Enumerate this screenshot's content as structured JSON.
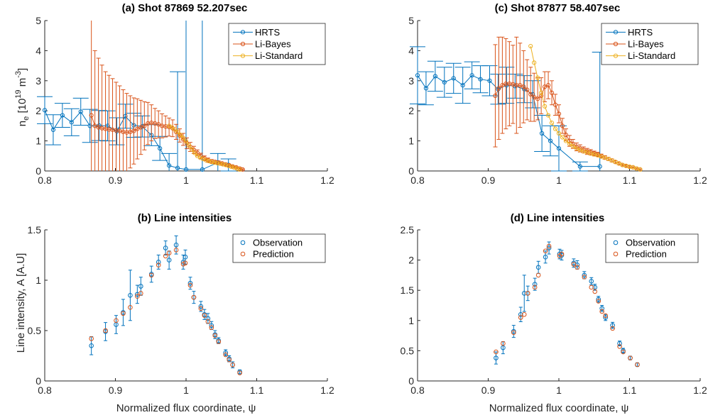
{
  "colors": {
    "HRTS": "#0072bd",
    "Li-Bayes": "#d95319",
    "Li-Standard": "#edb120",
    "Observation": "#0072bd",
    "Prediction": "#d95319"
  },
  "chart_data": [
    {
      "id": "a",
      "type": "line",
      "title": "(a) Shot 87869 52.207sec",
      "xlabel": "",
      "ylabel": "n_e [10^19 m^-3]",
      "xlim": [
        0.8,
        1.2
      ],
      "ylim": [
        0,
        5
      ],
      "xticks": [
        0.8,
        0.9,
        1.0,
        1.1,
        1.2
      ],
      "xtick_labels": [
        "0.8",
        "0.9",
        "1",
        "1.1",
        "1.2"
      ],
      "yticks": [
        0,
        1,
        2,
        3,
        4,
        5
      ],
      "ytick_labels": [
        "0",
        "1",
        "2",
        "3",
        "4",
        "5"
      ],
      "legend": {
        "location": "top-right",
        "entries": [
          "HRTS",
          "Li-Bayes",
          "Li-Standard"
        ]
      },
      "series": [
        {
          "name": "HRTS",
          "x": [
            0.8,
            0.812,
            0.825,
            0.838,
            0.851,
            0.864,
            0.877,
            0.889,
            0.902,
            0.914,
            0.926,
            0.938,
            0.951,
            0.963,
            0.976,
            0.988,
            1.0,
            1.023,
            1.045,
            1.06
          ],
          "y": [
            2.02,
            1.37,
            1.85,
            1.62,
            1.97,
            1.5,
            1.51,
            1.5,
            1.32,
            1.82,
            1.52,
            1.48,
            1.19,
            0.75,
            0.18,
            0.1,
            0.05,
            0.05,
            0.28,
            0.2
          ],
          "err": [
            0.45,
            0.5,
            0.4,
            0.45,
            0.45,
            0.55,
            0.5,
            0.5,
            0.45,
            0.4,
            0.4,
            0.35,
            0.35,
            0.4,
            0.4,
            3.2,
            5.0,
            5.0,
            0.3,
            0.2
          ]
        },
        {
          "name": "Li-Bayes",
          "x": [
            0.866,
            0.871,
            0.876,
            0.881,
            0.886,
            0.891,
            0.896,
            0.901,
            0.906,
            0.911,
            0.916,
            0.921,
            0.926,
            0.931,
            0.936,
            0.941,
            0.946,
            0.951,
            0.956,
            0.961,
            0.966,
            0.971,
            0.976,
            0.981,
            0.986,
            0.991,
            0.996,
            1.001,
            1.006,
            1.011,
            1.016,
            1.021,
            1.026,
            1.031,
            1.036,
            1.041,
            1.046,
            1.051,
            1.056,
            1.061,
            1.066,
            1.071,
            1.076,
            1.08
          ],
          "y": [
            1.85,
            1.5,
            1.45,
            1.42,
            1.4,
            1.38,
            1.37,
            1.35,
            1.33,
            1.3,
            1.28,
            1.3,
            1.33,
            1.4,
            1.45,
            1.5,
            1.58,
            1.6,
            1.58,
            1.55,
            1.5,
            1.48,
            1.46,
            1.42,
            1.3,
            1.18,
            1.05,
            0.92,
            0.8,
            0.7,
            0.6,
            0.5,
            0.42,
            0.36,
            0.32,
            0.3,
            0.28,
            0.25,
            0.22,
            0.19,
            0.15,
            0.12,
            0.08,
            0.05
          ],
          "err": [
            3.5,
            2.5,
            2.3,
            2.1,
            1.9,
            1.8,
            1.7,
            1.6,
            1.5,
            1.4,
            1.3,
            1.2,
            1.1,
            1.0,
            0.9,
            0.8,
            0.7,
            0.6,
            0.5,
            0.45,
            0.4,
            0.35,
            0.3,
            0.28,
            0.25,
            0.22,
            0.2,
            0.18,
            0.15,
            0.12,
            0.1,
            0.09,
            0.08,
            0.07,
            0.06,
            0.05,
            0.05,
            0.04,
            0.04,
            0.03,
            0.03,
            0.03,
            0.02,
            0.02
          ]
        },
        {
          "name": "Li-Standard",
          "x": [
            0.976,
            0.98,
            0.984,
            0.988,
            0.992,
            0.996,
            1.0,
            1.004,
            1.008,
            1.012,
            1.016,
            1.02,
            1.024,
            1.028,
            1.032,
            1.036,
            1.04,
            1.044,
            1.048,
            1.052,
            1.056,
            1.06,
            1.064,
            1.068,
            1.072,
            1.076
          ],
          "y": [
            1.5,
            1.45,
            1.38,
            1.3,
            1.2,
            1.1,
            0.98,
            0.85,
            0.72,
            0.6,
            0.5,
            0.44,
            0.4,
            0.36,
            0.33,
            0.3,
            0.28,
            0.26,
            0.24,
            0.22,
            0.2,
            0.17,
            0.14,
            0.11,
            0.08,
            0.05
          ],
          "err": []
        }
      ]
    },
    {
      "id": "c",
      "type": "line",
      "title": "(c) Shot 87877 58.407sec",
      "xlabel": "",
      "ylabel": "",
      "xlim": [
        0.8,
        1.2
      ],
      "ylim": [
        0,
        5
      ],
      "xticks": [
        0.8,
        0.9,
        1.0,
        1.1,
        1.2
      ],
      "xtick_labels": [
        "0.8",
        "0.9",
        "1",
        "1.1",
        "1.2"
      ],
      "yticks": [
        0,
        1,
        2,
        3,
        4,
        5
      ],
      "ytick_labels": [
        "0",
        "1",
        "2",
        "3",
        "4",
        "5"
      ],
      "legend": {
        "location": "top-right",
        "entries": [
          "HRTS",
          "Li-Bayes",
          "Li-Standard"
        ]
      },
      "series": [
        {
          "name": "HRTS",
          "x": [
            0.8,
            0.812,
            0.825,
            0.838,
            0.851,
            0.864,
            0.877,
            0.889,
            0.902,
            0.914,
            0.926,
            0.938,
            0.951,
            0.963,
            0.976,
            0.988,
            1.0,
            1.03,
            1.058
          ],
          "y": [
            3.18,
            2.75,
            3.15,
            2.95,
            3.08,
            2.85,
            3.18,
            3.05,
            3.0,
            2.72,
            2.85,
            2.82,
            2.72,
            2.55,
            1.25,
            1.0,
            0.75,
            0.15,
            0.15
          ],
          "err": [
            0.95,
            0.55,
            0.5,
            0.5,
            0.5,
            0.6,
            0.45,
            0.45,
            0.5,
            0.5,
            0.6,
            0.4,
            0.45,
            0.45,
            0.6,
            0.5,
            0.75,
            0.15,
            3.8
          ]
        },
        {
          "name": "Li-Bayes",
          "x": [
            0.91,
            0.915,
            0.92,
            0.925,
            0.93,
            0.935,
            0.94,
            0.945,
            0.95,
            0.955,
            0.96,
            0.965,
            0.97,
            0.975,
            0.98,
            0.985,
            0.99,
            0.995,
            1.0,
            1.005,
            1.01,
            1.015,
            1.02,
            1.025,
            1.03,
            1.035,
            1.04,
            1.045,
            1.05,
            1.055,
            1.06,
            1.065,
            1.07,
            1.075,
            1.08,
            1.085,
            1.09,
            1.095,
            1.1,
            1.105,
            1.11,
            1.115
          ],
          "y": [
            2.5,
            2.75,
            2.85,
            2.9,
            2.9,
            2.88,
            2.85,
            2.85,
            2.8,
            2.7,
            2.55,
            2.45,
            2.4,
            2.5,
            2.8,
            2.85,
            2.6,
            2.2,
            1.9,
            1.5,
            1.2,
            1.0,
            0.9,
            0.8,
            0.75,
            0.7,
            0.65,
            0.62,
            0.58,
            0.55,
            0.5,
            0.45,
            0.4,
            0.35,
            0.3,
            0.25,
            0.2,
            0.17,
            0.14,
            0.12,
            0.08,
            0.05
          ],
          "err": [
            1.7,
            1.7,
            1.6,
            1.5,
            1.4,
            1.3,
            1.6,
            1.4,
            1.2,
            1.0,
            0.9,
            0.8,
            0.7,
            0.6,
            0.5,
            0.45,
            0.4,
            0.35,
            0.3,
            0.25,
            0.2,
            0.18,
            0.15,
            0.13,
            0.12,
            0.1,
            0.1,
            0.09,
            0.08,
            0.07,
            0.06,
            0.06,
            0.05,
            0.05,
            0.04,
            0.04,
            0.03,
            0.03,
            0.03,
            0.02,
            0.02,
            0.02
          ]
        },
        {
          "name": "Li-Standard",
          "x": [
            0.96,
            0.965,
            0.97,
            0.975,
            0.98,
            0.985,
            0.99,
            0.995,
            1.0,
            1.005,
            1.01,
            1.015,
            1.02,
            1.025,
            1.03,
            1.035,
            1.04,
            1.045,
            1.05,
            1.055,
            1.06,
            1.065,
            1.07,
            1.075,
            1.08,
            1.085,
            1.09,
            1.095,
            1.1,
            1.105,
            1.11,
            1.115
          ],
          "y": [
            4.15,
            3.6,
            3.1,
            2.6,
            2.15,
            1.85,
            1.6,
            1.4,
            1.25,
            1.12,
            1.0,
            0.9,
            0.82,
            0.75,
            0.7,
            0.65,
            0.62,
            0.58,
            0.55,
            0.52,
            0.48,
            0.44,
            0.4,
            0.35,
            0.3,
            0.25,
            0.2,
            0.17,
            0.14,
            0.12,
            0.08,
            0.05
          ],
          "err": []
        }
      ]
    },
    {
      "id": "b",
      "type": "scatter",
      "title": "(b) Line intensities",
      "xlabel": "Normalized flux coordinate, ψ",
      "ylabel": "Line intensity, A [A.U]",
      "xlim": [
        0.8,
        1.2
      ],
      "ylim": [
        0,
        1.5
      ],
      "xticks": [
        0.8,
        0.9,
        1.0,
        1.1,
        1.2
      ],
      "xtick_labels": [
        "0.8",
        "0.9",
        "1",
        "1.1",
        "1.2"
      ],
      "yticks": [
        0,
        0.5,
        1,
        1.5
      ],
      "ytick_labels": [
        "0",
        "0.5",
        "1",
        "1.5"
      ],
      "legend": {
        "location": "top-right",
        "entries": [
          "Observation",
          "Prediction"
        ]
      },
      "series": [
        {
          "name": "Observation",
          "x": [
            0.866,
            0.886,
            0.901,
            0.911,
            0.921,
            0.931,
            0.936,
            0.951,
            0.961,
            0.971,
            0.976,
            0.986,
            0.996,
            0.999,
            1.006,
            1.011,
            1.021,
            1.026,
            1.031,
            1.036,
            1.041,
            1.046,
            1.056,
            1.061,
            1.066,
            1.076
          ],
          "y": [
            0.35,
            0.49,
            0.56,
            0.68,
            0.85,
            0.86,
            0.94,
            1.06,
            1.18,
            1.32,
            1.2,
            1.35,
            1.18,
            1.23,
            0.97,
            0.83,
            0.74,
            0.66,
            0.62,
            0.55,
            0.46,
            0.4,
            0.28,
            0.22,
            0.16,
            0.09
          ]
        },
        {
          "name": "Prediction",
          "x": [
            0.866,
            0.886,
            0.901,
            0.911,
            0.921,
            0.931,
            0.936,
            0.951,
            0.961,
            0.971,
            0.976,
            0.986,
            0.996,
            0.999,
            1.006,
            1.011,
            1.021,
            1.026,
            1.031,
            1.036,
            1.041,
            1.046,
            1.056,
            1.061,
            1.066,
            1.076
          ],
          "y": [
            0.42,
            0.5,
            0.6,
            0.67,
            0.73,
            0.84,
            0.87,
            1.05,
            1.15,
            1.24,
            1.27,
            1.3,
            1.16,
            1.17,
            0.95,
            0.83,
            0.72,
            0.65,
            0.59,
            0.53,
            0.45,
            0.39,
            0.26,
            0.21,
            0.16,
            0.08
          ]
        }
      ],
      "errorbars": [
        0.09,
        0.09,
        0.09,
        0.13,
        0.25,
        0.09,
        0.09,
        0.08,
        0.07,
        0.07,
        0.09,
        0.09,
        0.07,
        0.07,
        0.06,
        0.06,
        0.05,
        0.05,
        0.05,
        0.04,
        0.04,
        0.03,
        0.03,
        0.03,
        0.03,
        0.02
      ]
    },
    {
      "id": "d",
      "type": "scatter",
      "title": "(d) Line intensities",
      "xlabel": "Normalized flux coordinate, ψ",
      "ylabel": "",
      "xlim": [
        0.8,
        1.2
      ],
      "ylim": [
        0,
        2.5
      ],
      "xticks": [
        0.8,
        0.9,
        1.0,
        1.1,
        1.2
      ],
      "xtick_labels": [
        "0.8",
        "0.9",
        "1",
        "1.1",
        "1.2"
      ],
      "yticks": [
        0,
        0.5,
        1,
        1.5,
        2,
        2.5
      ],
      "ytick_labels": [
        "0",
        "0.5",
        "1",
        "1.5",
        "2",
        "2.5"
      ],
      "legend": {
        "location": "top-right",
        "entries": [
          "Observation",
          "Prediction"
        ]
      },
      "series": [
        {
          "name": "Observation",
          "x": [
            0.911,
            0.921,
            0.936,
            0.946,
            0.951,
            0.956,
            0.966,
            0.971,
            0.981,
            0.986,
            1.001,
            1.004,
            1.021,
            1.026,
            1.036,
            1.046,
            1.051,
            1.056,
            1.061,
            1.066,
            1.076,
            1.086,
            1.091,
            1.101,
            1.111
          ],
          "y": [
            0.38,
            0.55,
            0.82,
            1.1,
            1.45,
            1.45,
            1.6,
            1.88,
            2.05,
            2.2,
            2.1,
            2.08,
            1.95,
            1.92,
            1.75,
            1.65,
            1.55,
            1.35,
            1.2,
            1.05,
            0.92,
            0.62,
            0.5,
            0.38,
            0.27
          ]
        },
        {
          "name": "Prediction",
          "x": [
            0.911,
            0.921,
            0.936,
            0.946,
            0.951,
            0.956,
            0.966,
            0.971,
            0.981,
            0.986,
            1.001,
            1.004,
            1.021,
            1.026,
            1.036,
            1.046,
            1.051,
            1.056,
            1.061,
            1.066,
            1.076,
            1.086,
            1.091,
            1.101,
            1.111
          ],
          "y": [
            0.48,
            0.62,
            0.8,
            1.05,
            1.1,
            1.45,
            1.55,
            1.75,
            2.15,
            2.23,
            2.07,
            2.1,
            1.93,
            1.88,
            1.72,
            1.55,
            1.48,
            1.32,
            1.15,
            1.08,
            0.87,
            0.57,
            0.48,
            0.38,
            0.27
          ]
        }
      ],
      "errorbars": [
        0.1,
        0.1,
        0.1,
        0.12,
        0.3,
        0.12,
        0.1,
        0.1,
        0.1,
        0.1,
        0.08,
        0.08,
        0.07,
        0.07,
        0.06,
        0.06,
        0.05,
        0.05,
        0.05,
        0.05,
        0.05,
        0.04,
        0.04,
        0.03,
        0.03
      ]
    }
  ]
}
